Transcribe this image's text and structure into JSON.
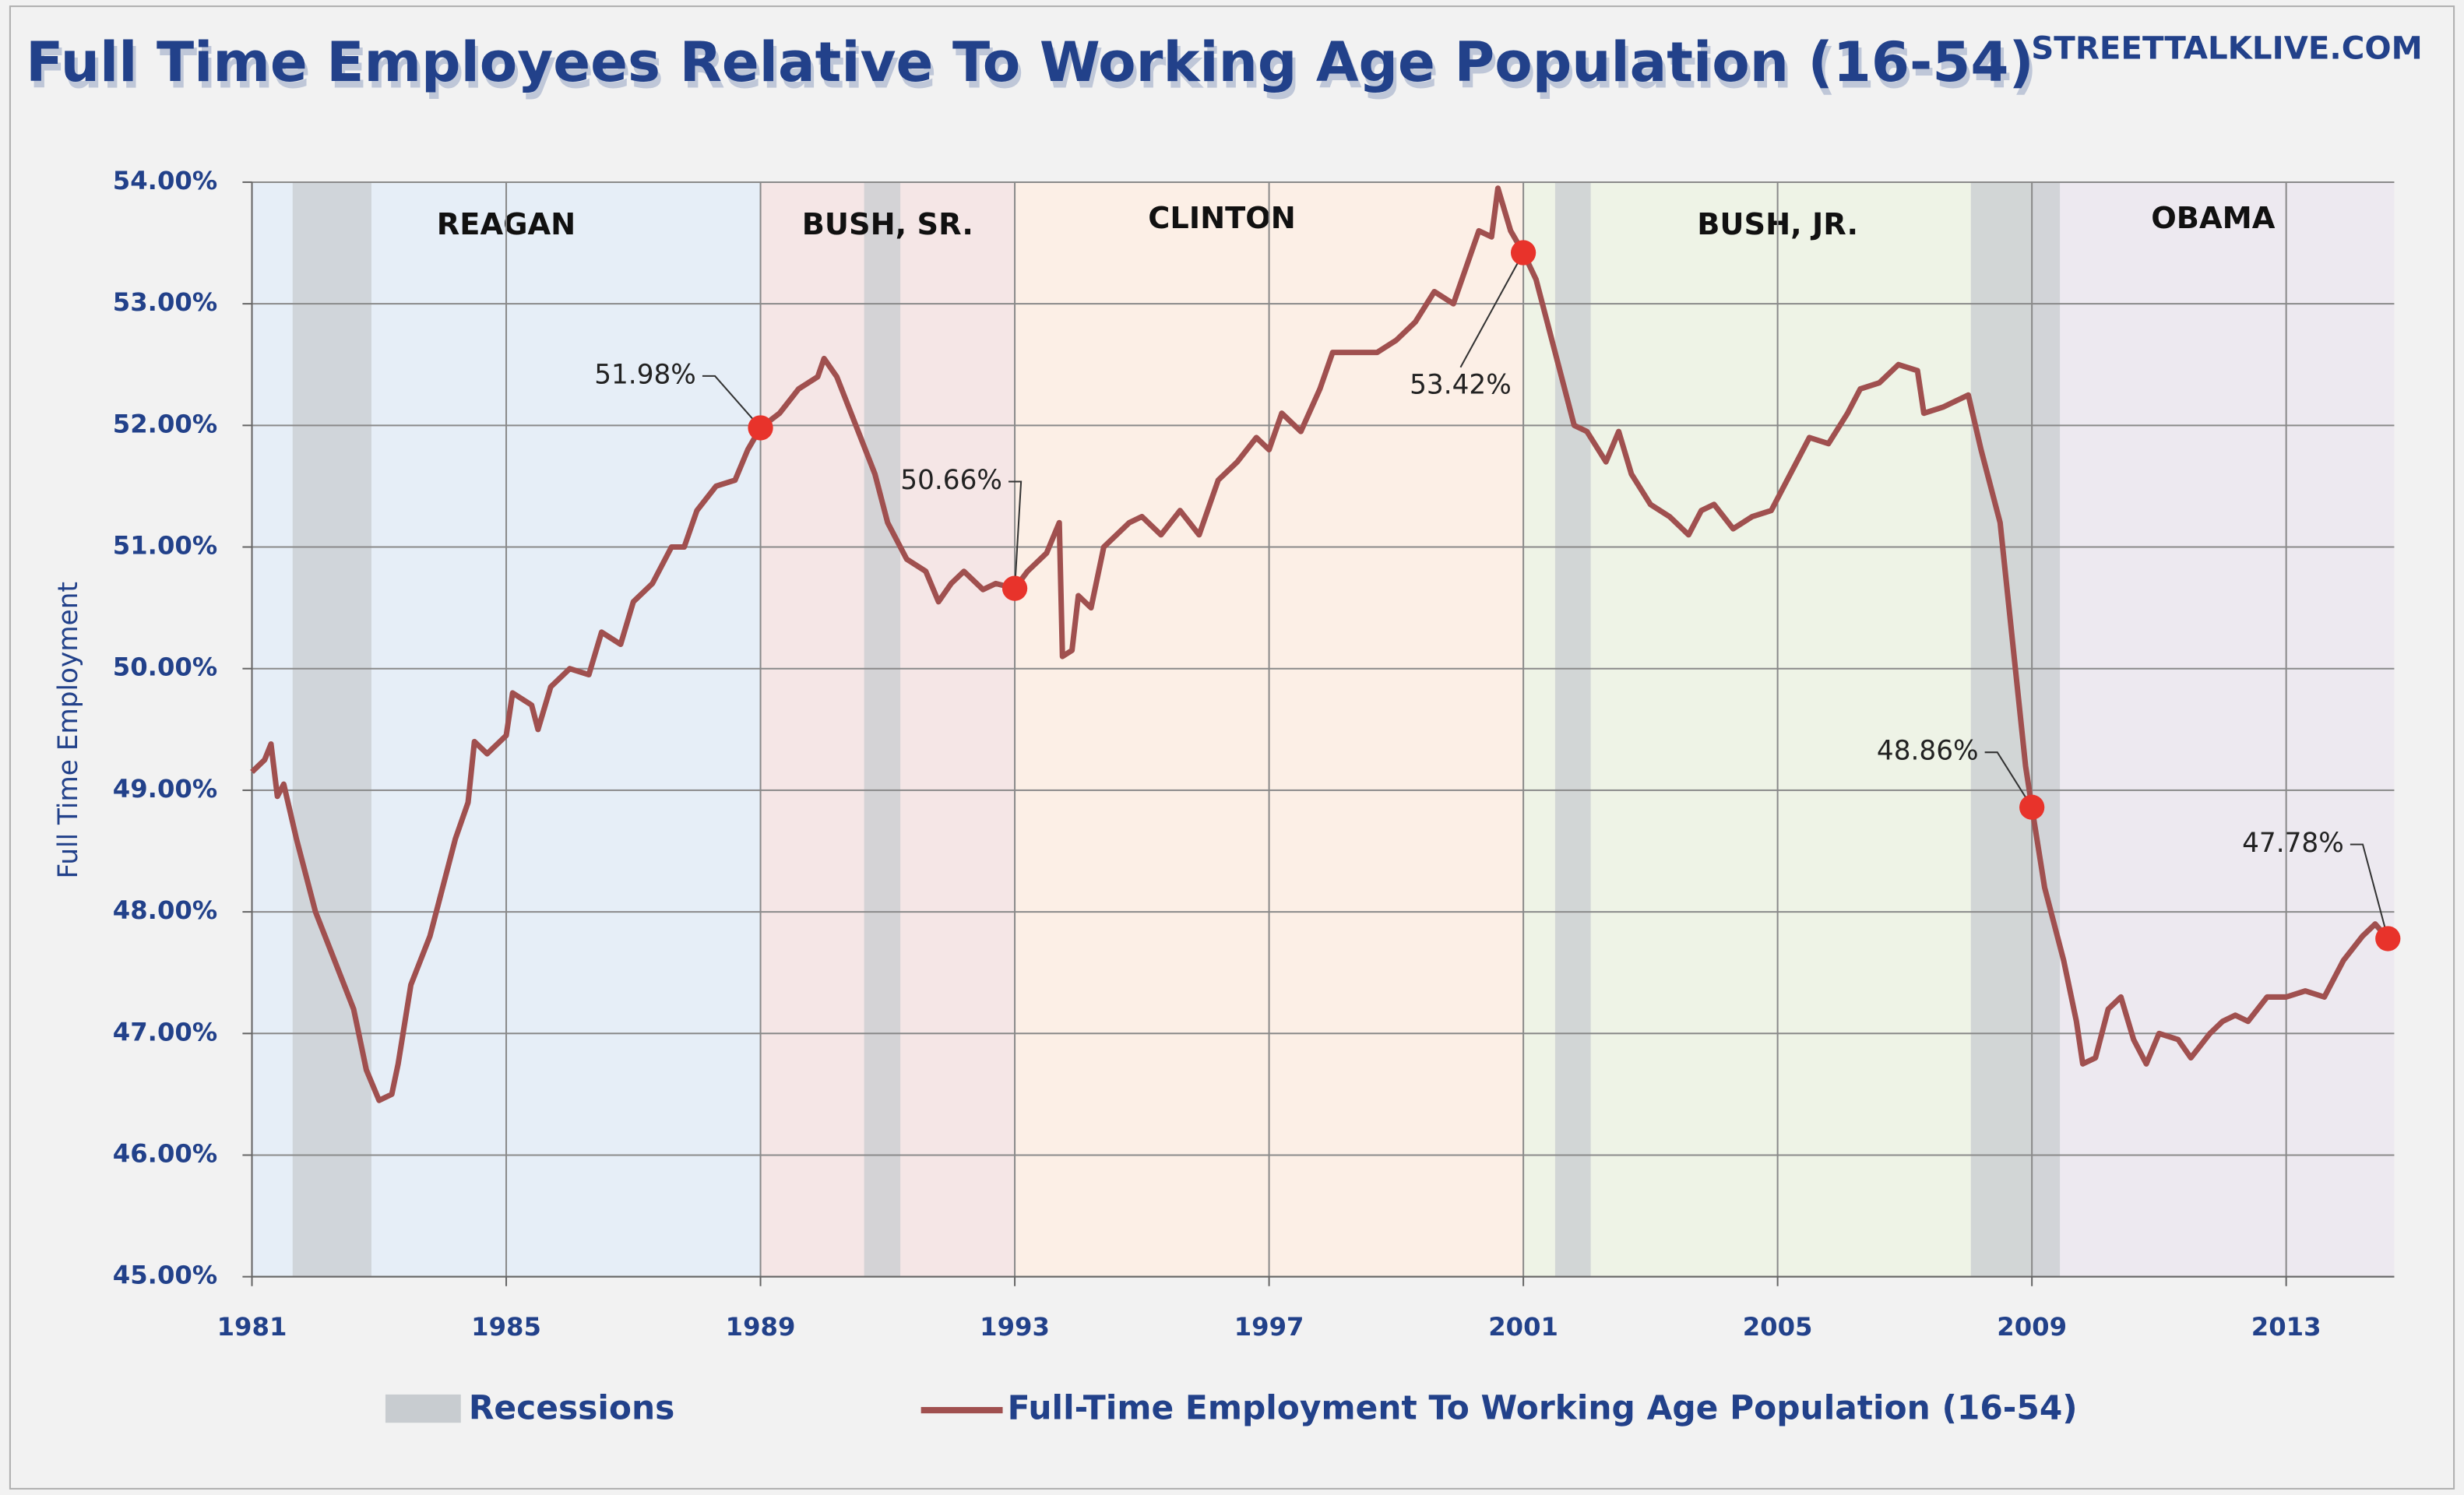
{
  "chart_data": {
    "type": "line",
    "title": "Full Time Employees Relative To Working Age Population (16-54)",
    "source": "STREETTALKLIVE.COM",
    "y_label": "Full Time Employment",
    "recession_label": "Recessions",
    "recession_color": "#c8ccd0",
    "grid": true,
    "xlim": [
      1981,
      2014.7
    ],
    "xticks": [
      1981,
      1985,
      1989,
      1993,
      1997,
      2001,
      2005,
      2009,
      2013
    ],
    "ylim": [
      45,
      54
    ],
    "yticks": [
      {
        "value": 45,
        "label": "45.00%"
      },
      {
        "value": 46,
        "label": "46.00%"
      },
      {
        "value": 47,
        "label": "47.00%"
      },
      {
        "value": 48,
        "label": "48.00%"
      },
      {
        "value": 49,
        "label": "49.00%"
      },
      {
        "value": 50,
        "label": "50.00%"
      },
      {
        "value": 51,
        "label": "51.00%"
      },
      {
        "value": 52,
        "label": "52.00%"
      },
      {
        "value": 53,
        "label": "53.00%"
      },
      {
        "value": 54,
        "label": "54.00%"
      }
    ],
    "presidencies": [
      {
        "name": "REAGAN",
        "start": 1981,
        "end": 1989,
        "color": "#e6eef7"
      },
      {
        "name": "BUSH, SR.",
        "start": 1989,
        "end": 1993,
        "color": "#f5e6e6"
      },
      {
        "name": "CLINTON",
        "start": 1993,
        "end": 2001,
        "color": "#fcefe6"
      },
      {
        "name": "BUSH, JR.",
        "start": 2001,
        "end": 2009,
        "color": "#eef3e6"
      },
      {
        "name": "OBAMA",
        "start": 2009,
        "end": 2014.7,
        "color": "#ede9f0"
      }
    ],
    "recessions": [
      [
        1981.64,
        1982.88
      ],
      [
        1990.63,
        1991.2
      ],
      [
        2001.5,
        2002.06
      ],
      [
        2008.04,
        2009.44
      ]
    ],
    "x": [
      1981.0,
      1981.2,
      1981.3,
      1981.4,
      1981.5,
      1981.7,
      1982.0,
      1982.3,
      1982.6,
      1982.8,
      1983.0,
      1983.2,
      1983.3,
      1983.5,
      1983.8,
      1984.0,
      1984.2,
      1984.4,
      1984.5,
      1984.7,
      1985.0,
      1985.1,
      1985.4,
      1985.5,
      1985.7,
      1986.0,
      1986.3,
      1986.5,
      1986.8,
      1987.0,
      1987.3,
      1987.6,
      1987.8,
      1988.0,
      1988.3,
      1988.6,
      1988.8,
      1989.0,
      1989.3,
      1989.6,
      1989.9,
      1990.0,
      1990.2,
      1990.5,
      1990.8,
      1991.0,
      1991.3,
      1991.6,
      1991.8,
      1992.0,
      1992.2,
      1992.5,
      1992.7,
      1993.0,
      1993.2,
      1993.5,
      1993.7,
      1993.75,
      1993.9,
      1994.0,
      1994.2,
      1994.4,
      1994.8,
      1995.0,
      1995.3,
      1995.6,
      1995.9,
      1996.2,
      1996.5,
      1996.8,
      1997.0,
      1997.2,
      1997.5,
      1997.8,
      1998.0,
      1998.4,
      1998.7,
      1999.0,
      1999.3,
      1999.6,
      1999.9,
      2000.1,
      2000.3,
      2000.5,
      2000.6,
      2000.8,
      2001.0,
      2001.2,
      2001.5,
      2001.8,
      2002.0,
      2002.3,
      2002.5,
      2002.7,
      2003.0,
      2003.3,
      2003.6,
      2003.8,
      2004.0,
      2004.3,
      2004.6,
      2004.9,
      2005.1,
      2005.3,
      2005.5,
      2005.8,
      2006.1,
      2006.3,
      2006.6,
      2006.9,
      2007.2,
      2007.3,
      2007.6,
      2007.8,
      2008.0,
      2008.2,
      2008.5,
      2008.7,
      2008.9,
      2009.0,
      2009.2,
      2009.5,
      2009.7,
      2009.8,
      2010.0,
      2010.2,
      2010.4,
      2010.6,
      2010.8,
      2011.0,
      2011.3,
      2011.5,
      2011.8,
      2012.0,
      2012.2,
      2012.4,
      2012.7,
      2013.0,
      2013.3,
      2013.6,
      2013.9,
      2014.2,
      2014.4,
      2014.6
    ],
    "series": [
      {
        "name": "Full-Time Employment To Working Age Population (16-54)",
        "color": "#a0504f",
        "values": [
          49.15,
          49.25,
          49.38,
          48.95,
          49.05,
          48.6,
          48.0,
          47.6,
          47.2,
          46.7,
          46.45,
          46.5,
          46.75,
          47.4,
          47.8,
          48.2,
          48.6,
          48.9,
          49.4,
          49.3,
          49.45,
          49.8,
          49.7,
          49.5,
          49.85,
          50.0,
          49.95,
          50.3,
          50.2,
          50.55,
          50.7,
          51.0,
          51.0,
          51.3,
          51.5,
          51.55,
          51.8,
          51.98,
          52.1,
          52.3,
          52.4,
          52.55,
          52.4,
          52.0,
          51.6,
          51.2,
          50.9,
          50.8,
          50.55,
          50.7,
          50.8,
          50.65,
          50.7,
          50.66,
          50.8,
          50.95,
          51.2,
          50.1,
          50.15,
          50.6,
          50.5,
          51.0,
          51.2,
          51.25,
          51.1,
          51.3,
          51.1,
          51.55,
          51.7,
          51.9,
          51.8,
          52.1,
          51.95,
          52.3,
          52.6,
          52.6,
          52.6,
          52.7,
          52.85,
          53.1,
          53.0,
          53.3,
          53.6,
          53.55,
          53.95,
          53.6,
          53.42,
          53.2,
          52.6,
          52.0,
          51.95,
          51.7,
          51.95,
          51.6,
          51.35,
          51.25,
          51.1,
          51.3,
          51.35,
          51.15,
          51.25,
          51.3,
          51.5,
          51.7,
          51.9,
          51.85,
          52.1,
          52.3,
          52.35,
          52.5,
          52.45,
          52.1,
          52.15,
          52.2,
          52.25,
          51.8,
          51.2,
          50.2,
          49.2,
          48.86,
          48.2,
          47.6,
          47.1,
          46.75,
          46.8,
          47.2,
          47.3,
          46.95,
          46.75,
          47.0,
          46.95,
          46.8,
          47.0,
          47.1,
          47.15,
          47.1,
          47.3,
          47.3,
          47.35,
          47.3,
          47.6,
          47.8,
          47.9,
          47.78
        ]
      }
    ],
    "annotations": [
      {
        "x": 1989.0,
        "value": 51.98,
        "label": "51.98%"
      },
      {
        "x": 1993.0,
        "value": 50.66,
        "label": "50.66%"
      },
      {
        "x": 2001.0,
        "value": 53.42,
        "label": "53.42%"
      },
      {
        "x": 2009.0,
        "value": 48.86,
        "label": "48.86%"
      },
      {
        "x": 2014.6,
        "value": 47.78,
        "label": "47.78%"
      }
    ],
    "annotation_color": "#e8332b"
  }
}
